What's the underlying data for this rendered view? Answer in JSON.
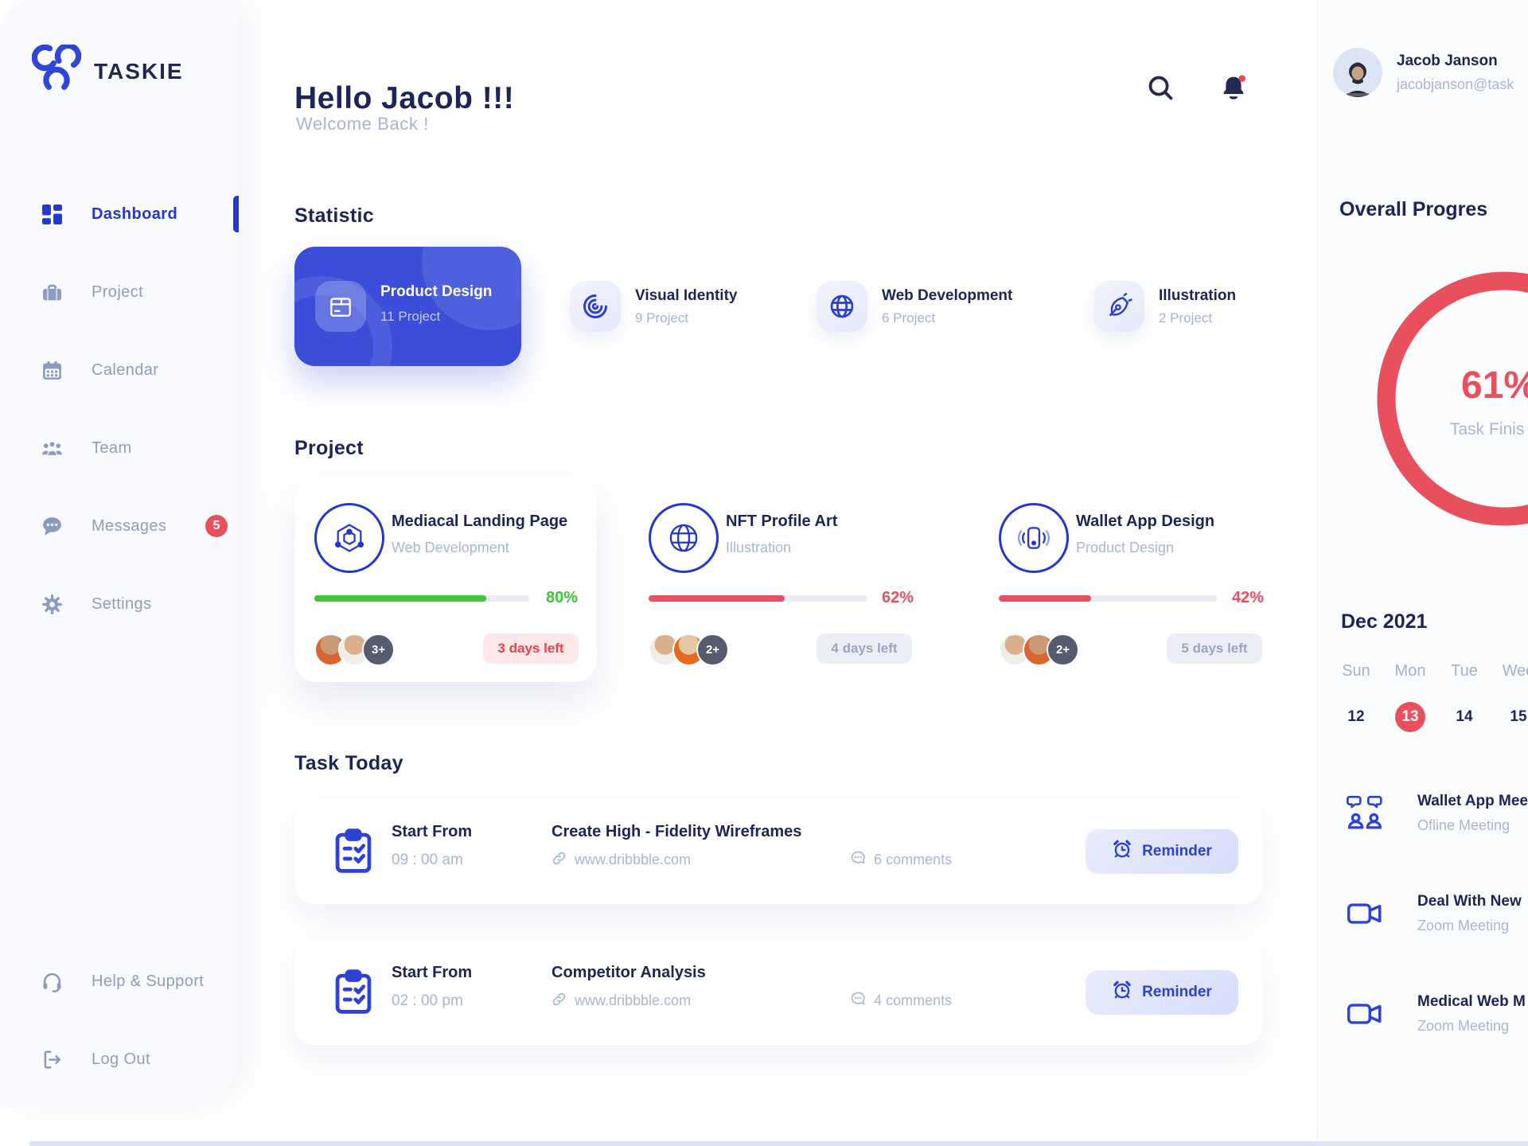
{
  "brand": {
    "name": "TASKIE"
  },
  "sidebar": {
    "items": [
      {
        "label": "Dashboard",
        "icon": "dashboard-icon",
        "active": true
      },
      {
        "label": "Project",
        "icon": "briefcase-icon"
      },
      {
        "label": "Calendar",
        "icon": "calendar-icon"
      },
      {
        "label": "Team",
        "icon": "team-icon"
      },
      {
        "label": "Messages",
        "icon": "messages-icon",
        "badge": "5"
      },
      {
        "label": "Settings",
        "icon": "gear-icon"
      }
    ],
    "footer_items": [
      {
        "label": "Help & Support",
        "icon": "headset-icon"
      },
      {
        "label": "Log Out",
        "icon": "logout-icon"
      }
    ]
  },
  "header": {
    "title": "Hello Jacob !!!",
    "subtitle": "Welcome Back !"
  },
  "statistic": {
    "heading": "Statistic",
    "cards": [
      {
        "title": "Product Design",
        "count": "11 Project",
        "icon": "package-icon",
        "highlighted": true
      },
      {
        "title": "Visual Identity",
        "count": "9 Project",
        "icon": "swirl-icon"
      },
      {
        "title": "Web Development",
        "count": "6 Project",
        "icon": "globe-icon"
      },
      {
        "title": "Illustration",
        "count": "2 Project",
        "icon": "pen-nib-icon"
      }
    ]
  },
  "projects": {
    "heading": "Project",
    "cards": [
      {
        "title": "Mediacal Landing Page",
        "category": "Web Development",
        "percent": 80,
        "percent_label": "80%",
        "extra": "3+",
        "days_left": "3 days left",
        "icon": "hexagon-node-icon",
        "bar_color": "green"
      },
      {
        "title": "NFT Profile Art",
        "category": "Illustration",
        "percent": 62,
        "percent_label": "62%",
        "extra": "2+",
        "days_left": "4 days left",
        "icon": "globe-icon",
        "bar_color": "red"
      },
      {
        "title": "Wallet App Design",
        "category": "Product Design",
        "percent": 42,
        "percent_label": "42%",
        "extra": "2+",
        "days_left": "5 days left",
        "icon": "phone-wave-icon",
        "bar_color": "red"
      }
    ]
  },
  "tasks": {
    "heading": "Task Today",
    "rows": [
      {
        "start_label": "Start From",
        "time": "09 : 00 am",
        "title": "Create High - Fidelity Wireframes",
        "link": "www.dribbble.com",
        "comments": "6 comments",
        "reminder_label": "Reminder"
      },
      {
        "start_label": "Start From",
        "time": "02 : 00 pm",
        "title": "Competitor Analysis",
        "link": "www.dribbble.com",
        "comments": "4 comments",
        "reminder_label": "Reminder"
      }
    ]
  },
  "profile": {
    "name": "Jacob Janson",
    "email": "jacobjanson@task"
  },
  "overall": {
    "heading": "Overall Progres",
    "percent": 61,
    "percent_label": "61%",
    "caption": "Task Finis",
    "ring_color": "#e8505e"
  },
  "calendar": {
    "month": "Dec 2021",
    "day_headers": [
      "Sun",
      "Mon",
      "Tue",
      "Wed"
    ],
    "dates": [
      "12",
      "13",
      "14",
      "15"
    ],
    "active_date": "13"
  },
  "meetings": [
    {
      "title": "Wallet App Mee",
      "type": "Ofline Meeting",
      "icon": "people-meeting-icon"
    },
    {
      "title": "Deal With New",
      "type": "Zoom Meeting",
      "icon": "video-camera-icon"
    },
    {
      "title": "Medical Web M",
      "type": "Zoom Meeting",
      "icon": "video-camera-icon"
    }
  ],
  "colors": {
    "accent_blue": "#3c4ed9",
    "navy": "#1b2559",
    "green": "#3dc53c",
    "red": "#e8505e",
    "muted": "#a9b6d3"
  }
}
